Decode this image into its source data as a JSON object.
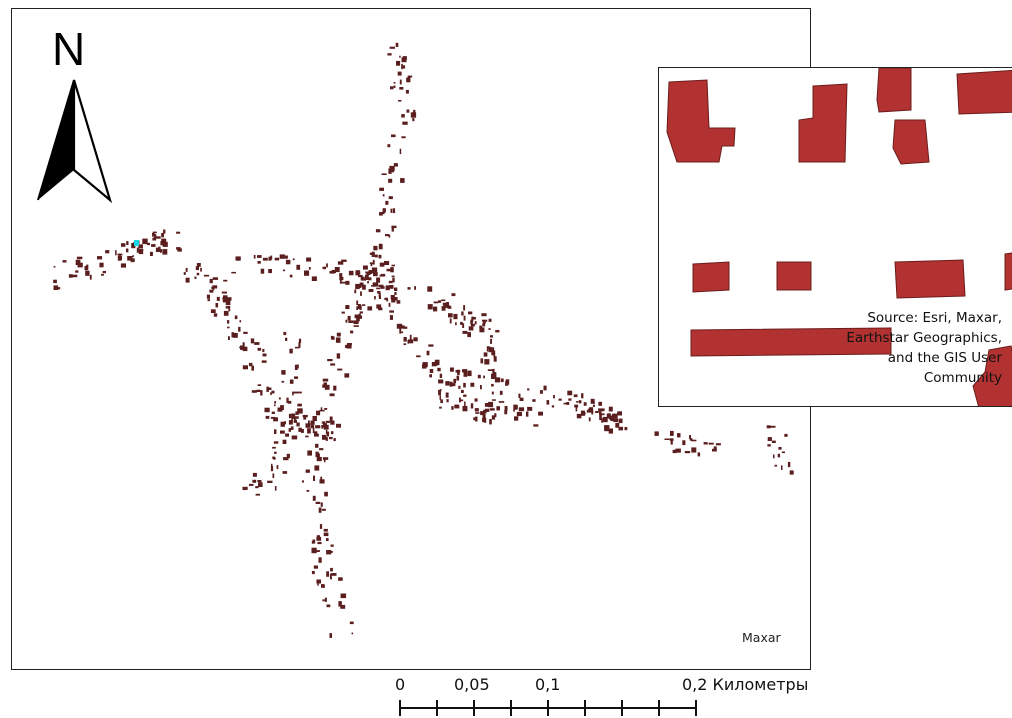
{
  "north_arrow": {
    "letter": "N",
    "icon": "north-arrow-icon"
  },
  "attribution": {
    "line1": "Source: Esri, Maxar,",
    "line2": "Earthstar Geographics,",
    "line3": "and the GIS User",
    "line4": "Community"
  },
  "basemap_credit": "Maxar",
  "scale_bar": {
    "labels": [
      "0",
      "0,05",
      "0,1",
      "0,2 Километры"
    ],
    "unit": "Километры"
  },
  "colors": {
    "building_fill": "#b23232",
    "building_stroke": "#6b1c1c",
    "building_dot": "#5a1e1e",
    "highlight": "#19d6e6",
    "frame": "#222222"
  }
}
